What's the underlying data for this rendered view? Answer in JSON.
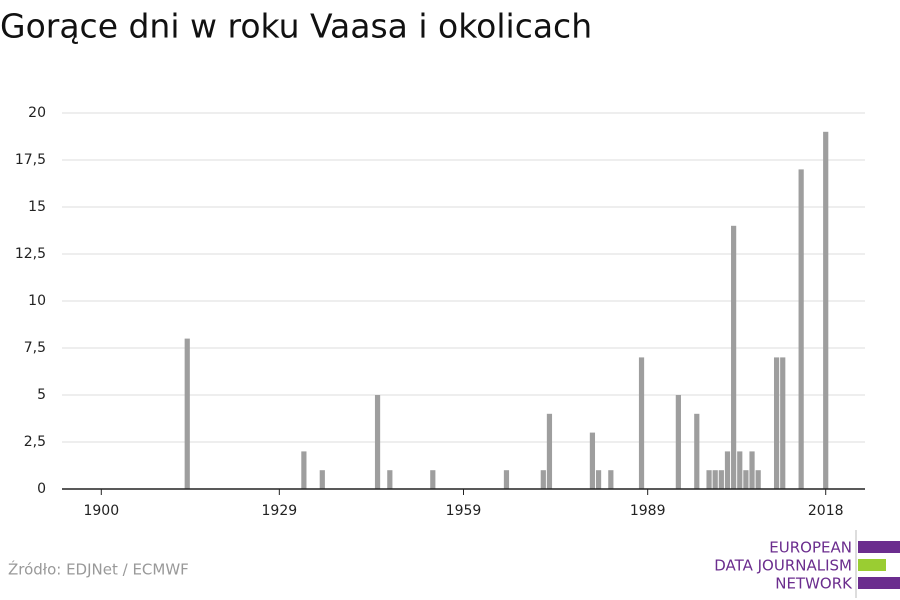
{
  "chart_data": {
    "type": "bar",
    "title": "Gorące dni w roku Vaasa i okolicach",
    "x": [
      1914,
      1933,
      1936,
      1945,
      1947,
      1954,
      1966,
      1972,
      1973,
      1980,
      1981,
      1983,
      1988,
      1994,
      1997,
      1999,
      2000,
      2001,
      2002,
      2003,
      2004,
      2005,
      2006,
      2007,
      2010,
      2011,
      2014,
      2018
    ],
    "values": [
      8,
      2,
      1,
      5,
      1,
      1,
      1,
      1,
      4,
      3,
      1,
      1,
      7,
      5,
      4,
      1,
      1,
      1,
      2,
      14,
      2,
      1,
      2,
      1,
      7,
      7,
      17,
      19
    ],
    "color": "#9e9e9e",
    "xlim": [
      1893.6,
      2024.4
    ],
    "xticks": [
      1900,
      1929,
      1959,
      1989,
      2018
    ],
    "ylim": [
      0,
      20
    ],
    "yticks": [
      0,
      {
        "value": 2.5,
        "label": "2,5"
      },
      5,
      {
        "value": 7.5,
        "label": "7,5"
      },
      10,
      {
        "value": 12.5,
        "label": "12,5"
      },
      15,
      {
        "value": 17.5,
        "label": "17,5"
      },
      20
    ],
    "grid": true,
    "source": "Źródło: EDJNet / ECMWF",
    "logo": [
      "EUROPEAN",
      "DATA JOURNALISM",
      "NETWORK"
    ]
  }
}
